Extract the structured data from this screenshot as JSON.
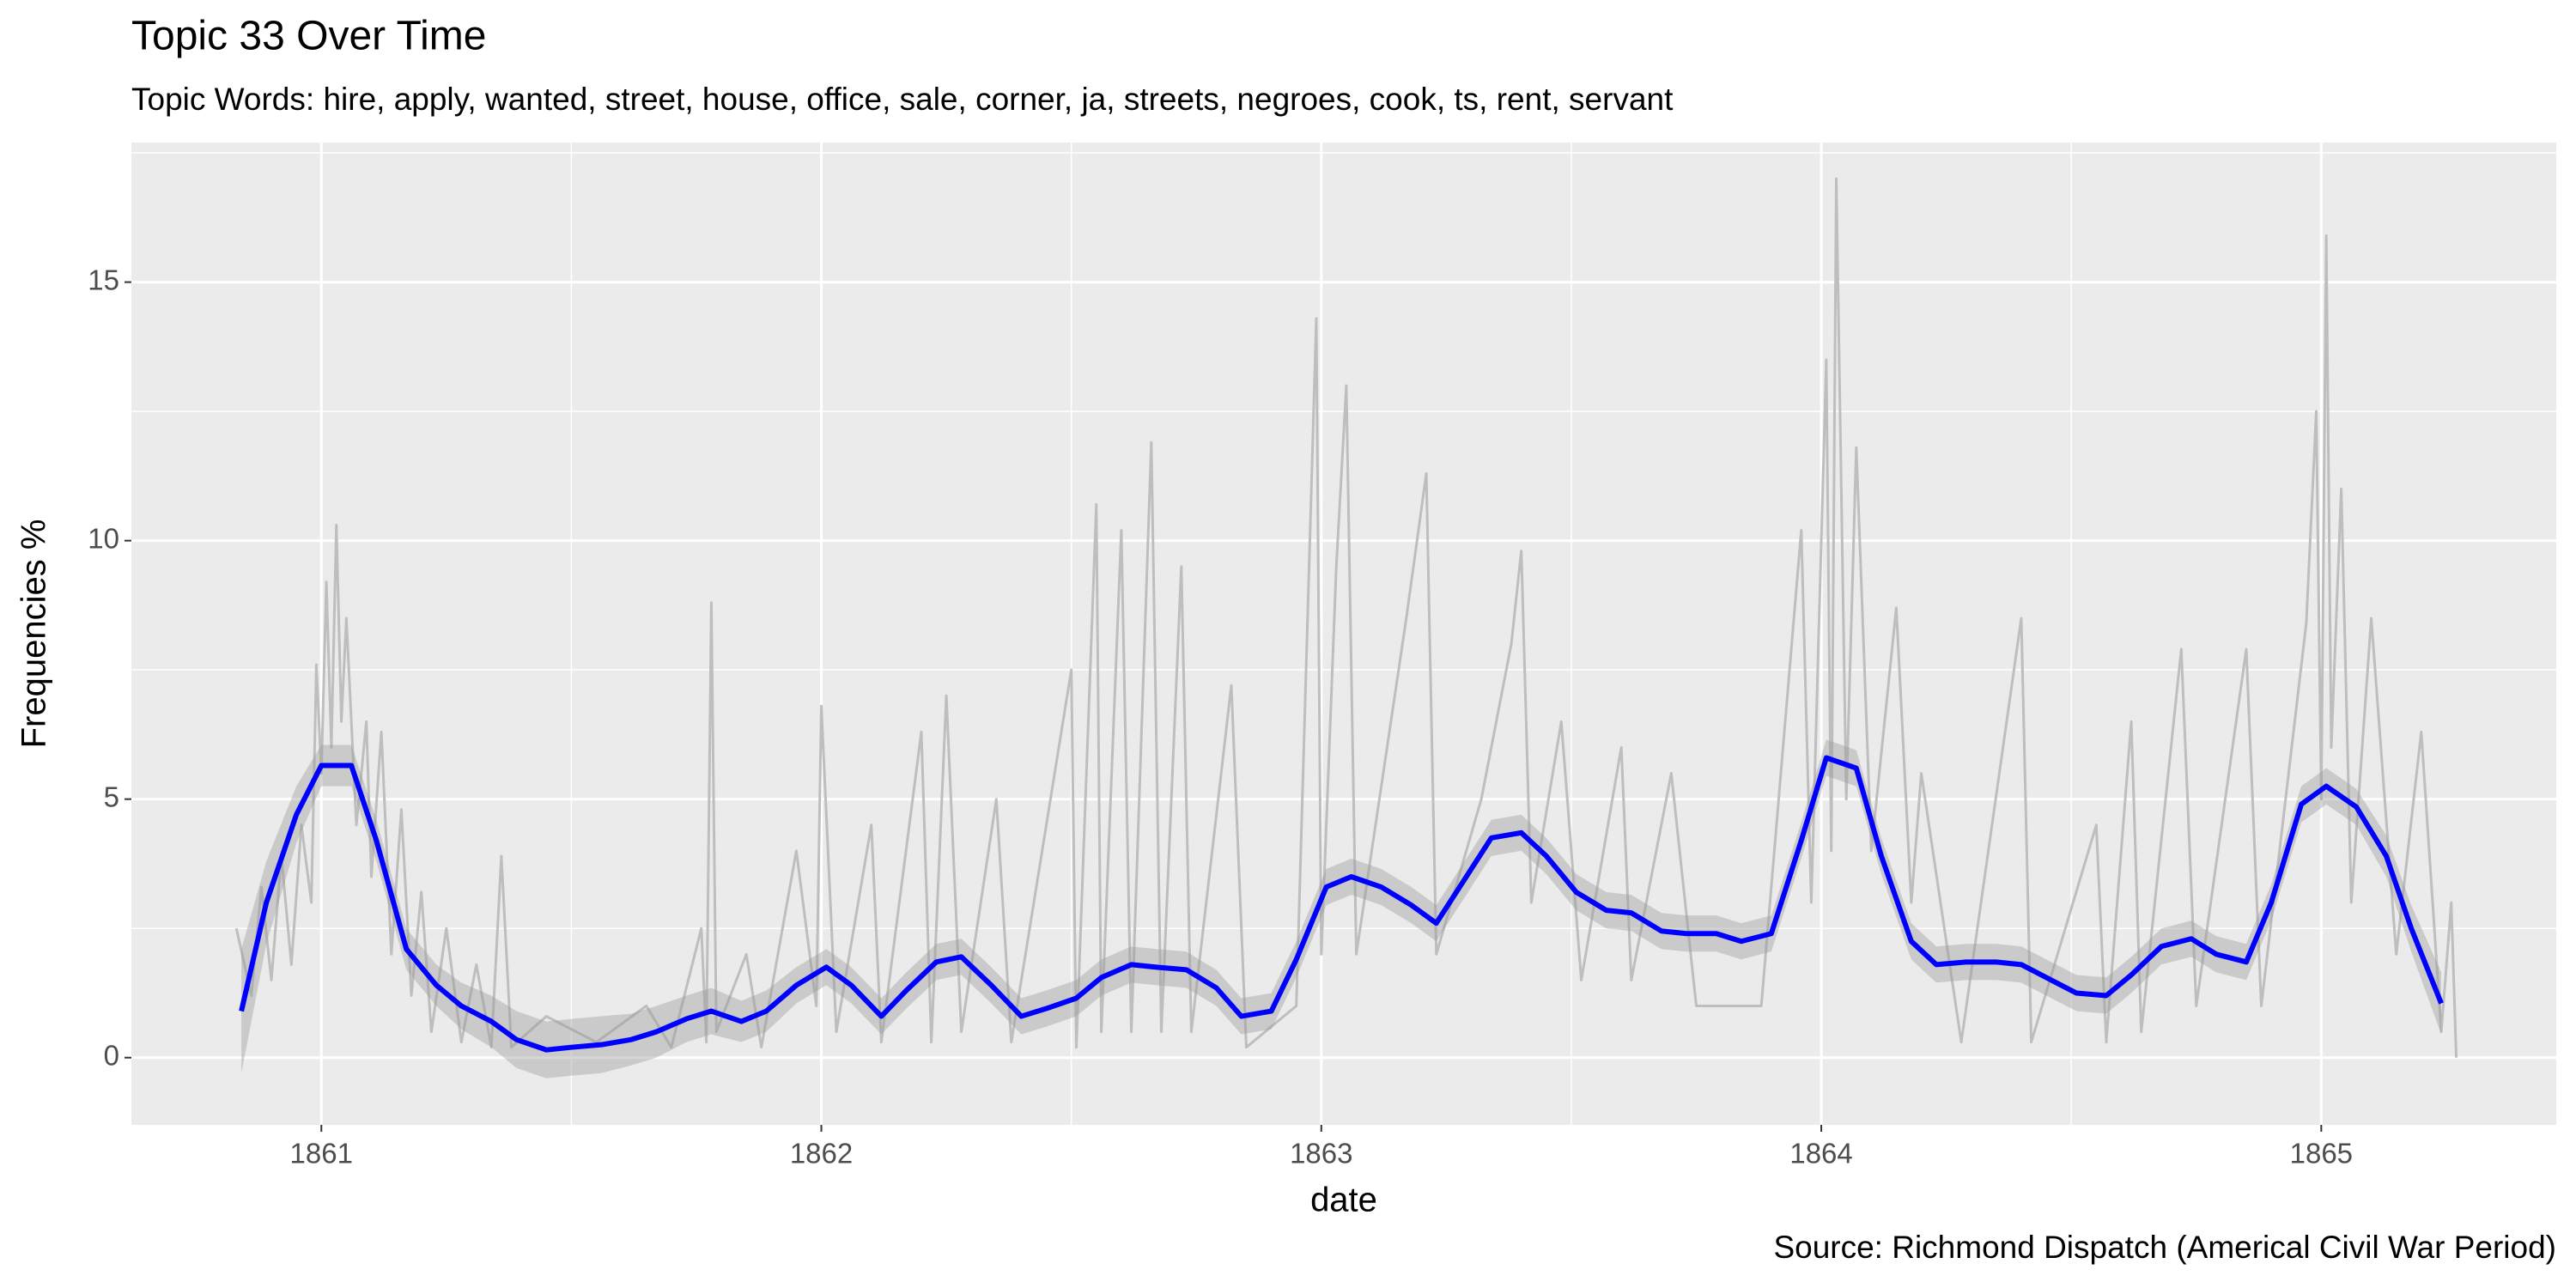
{
  "chart_data": {
    "type": "line",
    "title": "Topic 33 Over Time",
    "subtitle": "Topic Words: hire, apply, wanted, street, house, office, sale, corner, ja, streets, negroes, cook, ts, rent, servant",
    "caption": "Source: Richmond Dispatch (Americal Civil War Period)",
    "x_label": "date",
    "y_label": "Frequencies %",
    "xlim": [
      1860.62,
      1865.47
    ],
    "ylim": [
      -1.3,
      17.7
    ],
    "xticks": [
      1861,
      1862,
      1863,
      1864,
      1865
    ],
    "yticks": [
      0,
      5,
      10,
      15
    ],
    "minor_xticks": [
      1861.5,
      1862.5,
      1863.5,
      1864.5
    ],
    "minor_yticks": [
      2.5,
      7.5,
      12.5,
      17.5
    ],
    "grid": true,
    "band_color": "#999999",
    "series": [
      {
        "color": "#bebebe",
        "x": [
          1860.83,
          1860.86,
          1860.88,
          1860.9,
          1860.92,
          1860.94,
          1860.96,
          1860.98,
          1860.99,
          1861.0,
          1861.01,
          1861.02,
          1861.03,
          1861.04,
          1861.05,
          1861.07,
          1861.09,
          1861.1,
          1861.12,
          1861.14,
          1861.16,
          1861.18,
          1861.2,
          1861.22,
          1861.25,
          1861.28,
          1861.31,
          1861.34,
          1861.36,
          1861.38,
          1861.45,
          1861.55,
          1861.65,
          1861.7,
          1861.76,
          1861.77,
          1861.78,
          1861.79,
          1861.85,
          1861.88,
          1861.95,
          1861.99,
          1862.0,
          1862.03,
          1862.1,
          1862.12,
          1862.2,
          1862.22,
          1862.25,
          1862.28,
          1862.35,
          1862.38,
          1862.5,
          1862.51,
          1862.55,
          1862.56,
          1862.6,
          1862.62,
          1862.66,
          1862.68,
          1862.72,
          1862.74,
          1862.82,
          1862.85,
          1862.95,
          1862.99,
          1863.0,
          1863.03,
          1863.05,
          1863.07,
          1863.17,
          1863.21,
          1863.23,
          1863.32,
          1863.38,
          1863.4,
          1863.42,
          1863.48,
          1863.52,
          1863.6,
          1863.62,
          1863.7,
          1863.75,
          1863.88,
          1863.96,
          1863.98,
          1864.01,
          1864.02,
          1864.03,
          1864.05,
          1864.07,
          1864.1,
          1864.15,
          1864.18,
          1864.2,
          1864.28,
          1864.4,
          1864.42,
          1864.55,
          1864.57,
          1864.62,
          1864.64,
          1864.72,
          1864.75,
          1864.85,
          1864.88,
          1864.97,
          1864.99,
          1865.0,
          1865.01,
          1865.02,
          1865.04,
          1865.06,
          1865.1,
          1865.15,
          1865.2,
          1865.24,
          1865.26,
          1865.27
        ],
        "values": [
          2.5,
          1.2,
          3.3,
          1.5,
          3.9,
          1.8,
          4.5,
          3.0,
          7.6,
          5.5,
          9.2,
          6.0,
          10.3,
          6.5,
          8.5,
          4.5,
          6.5,
          3.5,
          6.3,
          2.0,
          4.8,
          1.2,
          3.2,
          0.5,
          2.5,
          0.3,
          1.8,
          0.2,
          3.9,
          0.2,
          0.8,
          0.3,
          1.0,
          0.2,
          2.5,
          0.3,
          8.8,
          0.5,
          2.0,
          0.2,
          4.0,
          1.0,
          6.8,
          0.5,
          4.5,
          0.3,
          6.3,
          0.3,
          7.0,
          0.5,
          5.0,
          0.3,
          7.5,
          0.2,
          10.7,
          0.5,
          10.2,
          0.5,
          11.9,
          0.5,
          9.5,
          0.5,
          7.2,
          0.2,
          1.0,
          14.3,
          2.0,
          9.5,
          13.0,
          2.0,
          8.5,
          11.3,
          2.0,
          5.0,
          8.0,
          9.8,
          3.0,
          6.5,
          1.5,
          6.0,
          1.5,
          5.5,
          1.0,
          1.0,
          10.2,
          3.0,
          13.5,
          4.0,
          17.0,
          5.0,
          11.8,
          4.0,
          8.7,
          3.0,
          5.5,
          0.3,
          8.5,
          0.3,
          4.5,
          0.3,
          6.5,
          0.5,
          7.9,
          1.0,
          7.9,
          1.0,
          8.4,
          12.5,
          5.0,
          15.9,
          6.0,
          11.0,
          3.0,
          8.5,
          2.0,
          6.3,
          0.5,
          3.0,
          0.0
        ]
      },
      {
        "color": "#0000ff",
        "x": [
          1860.84,
          1860.89,
          1860.95,
          1861.0,
          1861.06,
          1861.11,
          1861.17,
          1861.23,
          1861.28,
          1861.34,
          1861.39,
          1861.45,
          1861.5,
          1861.56,
          1861.62,
          1861.67,
          1861.73,
          1861.78,
          1861.84,
          1861.89,
          1861.95,
          1862.01,
          1862.06,
          1862.12,
          1862.17,
          1862.23,
          1862.28,
          1862.34,
          1862.4,
          1862.45,
          1862.51,
          1862.56,
          1862.62,
          1862.67,
          1862.73,
          1862.79,
          1862.84,
          1862.9,
          1862.95,
          1863.01,
          1863.06,
          1863.12,
          1863.18,
          1863.23,
          1863.29,
          1863.34,
          1863.4,
          1863.45,
          1863.51,
          1863.57,
          1863.62,
          1863.68,
          1863.73,
          1863.79,
          1863.84,
          1863.9,
          1863.96,
          1864.01,
          1864.07,
          1864.12,
          1864.18,
          1864.23,
          1864.29,
          1864.35,
          1864.4,
          1864.46,
          1864.51,
          1864.57,
          1864.62,
          1864.68,
          1864.74,
          1864.79,
          1864.85,
          1864.9,
          1864.96,
          1865.01,
          1865.07,
          1865.13,
          1865.18,
          1865.24
        ],
        "values": [
          0.9,
          3.0,
          4.7,
          5.65,
          5.65,
          4.2,
          2.1,
          1.4,
          1.0,
          0.7,
          0.35,
          0.15,
          0.2,
          0.25,
          0.35,
          0.5,
          0.75,
          0.9,
          0.7,
          0.9,
          1.4,
          1.75,
          1.4,
          0.8,
          1.3,
          1.85,
          1.95,
          1.4,
          0.8,
          0.95,
          1.15,
          1.55,
          1.8,
          1.75,
          1.7,
          1.35,
          0.8,
          0.9,
          1.9,
          3.3,
          3.5,
          3.3,
          2.95,
          2.6,
          3.5,
          4.25,
          4.35,
          3.9,
          3.2,
          2.85,
          2.8,
          2.45,
          2.4,
          2.4,
          2.25,
          2.4,
          4.2,
          5.8,
          5.6,
          3.9,
          2.25,
          1.8,
          1.85,
          1.85,
          1.8,
          1.5,
          1.25,
          1.2,
          1.6,
          2.15,
          2.3,
          2.0,
          1.85,
          3.0,
          4.9,
          5.25,
          4.85,
          3.9,
          2.5,
          1.05
        ],
        "ci": [
          1.2,
          0.8,
          0.55,
          0.4,
          0.4,
          0.4,
          0.4,
          0.4,
          0.45,
          0.5,
          0.55,
          0.55,
          0.55,
          0.55,
          0.5,
          0.5,
          0.45,
          0.45,
          0.4,
          0.4,
          0.35,
          0.35,
          0.35,
          0.35,
          0.35,
          0.35,
          0.35,
          0.35,
          0.35,
          0.35,
          0.35,
          0.35,
          0.35,
          0.35,
          0.35,
          0.35,
          0.35,
          0.35,
          0.35,
          0.35,
          0.35,
          0.35,
          0.35,
          0.35,
          0.35,
          0.35,
          0.35,
          0.35,
          0.35,
          0.35,
          0.35,
          0.35,
          0.35,
          0.35,
          0.35,
          0.35,
          0.35,
          0.35,
          0.35,
          0.35,
          0.35,
          0.35,
          0.35,
          0.35,
          0.35,
          0.35,
          0.35,
          0.35,
          0.35,
          0.35,
          0.35,
          0.35,
          0.35,
          0.35,
          0.35,
          0.35,
          0.35,
          0.4,
          0.45,
          0.6
        ]
      }
    ]
  }
}
